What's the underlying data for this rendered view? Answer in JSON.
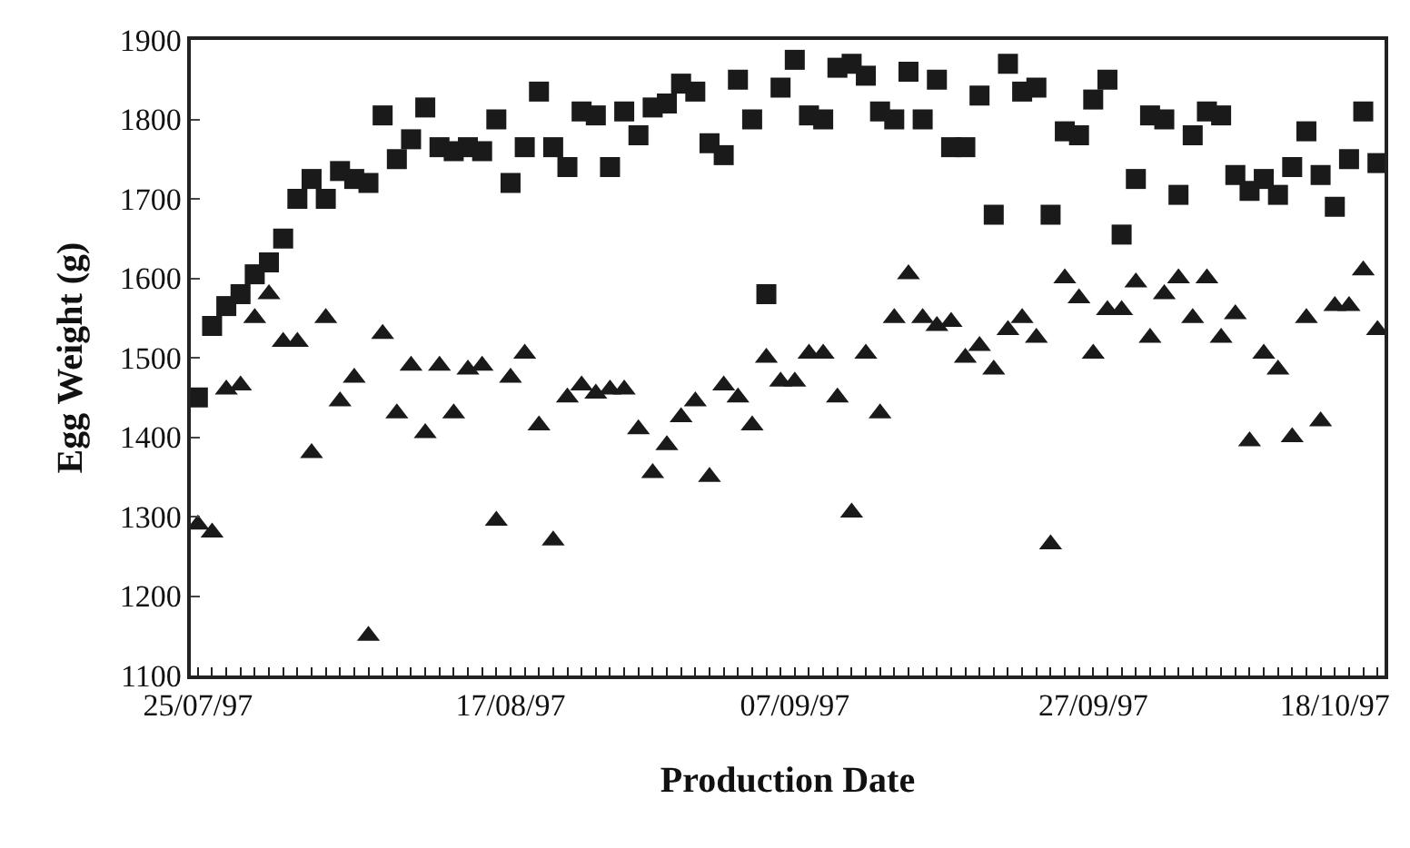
{
  "chart_data": {
    "type": "scatter",
    "xlabel": "Production Date",
    "ylabel": "Egg Weight (g)",
    "categories": [
      "25/07/97",
      null,
      null,
      null,
      null,
      null,
      null,
      null,
      null,
      null,
      null,
      null,
      null,
      null,
      null,
      null,
      null,
      null,
      null,
      null,
      null,
      null,
      "17/08/97",
      null,
      null,
      null,
      null,
      null,
      null,
      null,
      null,
      null,
      null,
      null,
      null,
      null,
      null,
      null,
      null,
      null,
      null,
      null,
      "07/09/97",
      null,
      null,
      null,
      null,
      null,
      null,
      null,
      null,
      null,
      null,
      null,
      null,
      null,
      null,
      null,
      null,
      null,
      null,
      null,
      null,
      "27/09/97",
      null,
      null,
      null,
      null,
      null,
      null,
      null,
      null,
      null,
      null,
      null,
      null,
      null,
      null,
      null,
      null,
      "18/10/97",
      null,
      null,
      null
    ],
    "series": [
      {
        "color": "#1a1a1a",
        "marker": "square",
        "values": [
          1450,
          1540,
          1565,
          1580,
          1605,
          1620,
          1650,
          1700,
          1725,
          1700,
          1735,
          1725,
          1720,
          1805,
          1750,
          1775,
          1815,
          1765,
          1760,
          1765,
          1760,
          1800,
          1720,
          1765,
          1835,
          1765,
          1740,
          1810,
          1805,
          1740,
          1810,
          1780,
          1815,
          1820,
          1845,
          1835,
          1770,
          1755,
          1850,
          1800,
          1580,
          1840,
          1875,
          1805,
          1800,
          1865,
          1870,
          1855,
          1810,
          1800,
          1860,
          1800,
          1850,
          1765,
          1765,
          1830,
          1680,
          1870,
          1835,
          1840,
          1680,
          1785,
          1780,
          1825,
          1850,
          1655,
          1725,
          1805,
          1800,
          1705,
          1780,
          1810,
          1805,
          1730,
          1710,
          1725,
          1705,
          1740,
          1785,
          1730,
          1690,
          1750,
          1810,
          1745
        ]
      },
      {
        "color": "#1a1a1a",
        "marker": "triangle",
        "values": [
          1290,
          1280,
          1460,
          1465,
          1550,
          1580,
          1520,
          1520,
          1380,
          1550,
          1445,
          1475,
          1150,
          1530,
          1430,
          1490,
          1405,
          1490,
          1430,
          1485,
          1490,
          1295,
          1475,
          1505,
          1415,
          1270,
          1450,
          1465,
          1455,
          1460,
          1460,
          1410,
          1355,
          1390,
          1425,
          1445,
          1350,
          1465,
          1450,
          1415,
          1500,
          1470,
          1470,
          1505,
          1505,
          1450,
          1305,
          1505,
          1430,
          1550,
          1605,
          1550,
          1540,
          1545,
          1500,
          1515,
          1485,
          1535,
          1550,
          1525,
          1265,
          1600,
          1575,
          1505,
          1560,
          1560,
          1595,
          1525,
          1580,
          1600,
          1550,
          1600,
          1525,
          1555,
          1395,
          1505,
          1485,
          1400,
          1550,
          1420,
          1565,
          1565,
          1610,
          1535
        ]
      }
    ],
    "ylim": [
      1100,
      1900
    ],
    "yticks": [
      1100,
      1200,
      1300,
      1400,
      1500,
      1600,
      1700,
      1800,
      1900
    ]
  }
}
